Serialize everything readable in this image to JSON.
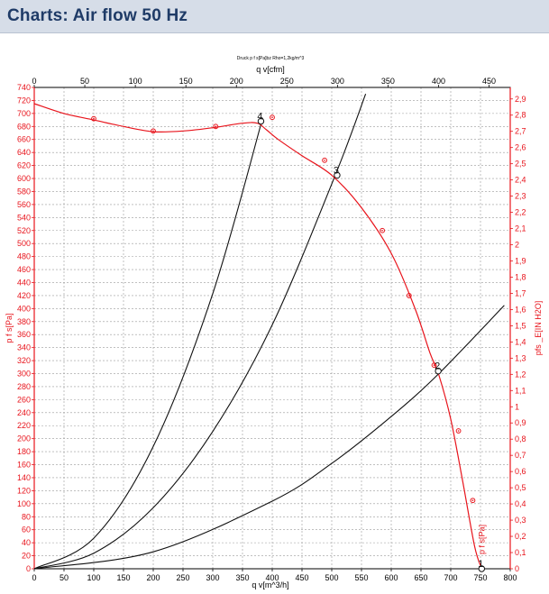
{
  "header": {
    "title": "Charts: Air flow 50 Hz"
  },
  "chart_data": {
    "type": "line",
    "title": "Druck p f s[Pa]bz Rho=1,2kg/m^3",
    "xlabel": "q v[m^3/h]",
    "xlabel_top": "q v[cfm]",
    "ylabel": "p f s[Pa]",
    "ylabel_right": "pfs _E[IN H2O]",
    "xlim": [
      0,
      800
    ],
    "ylim": [
      0,
      740
    ],
    "x_ticks": [
      0,
      50,
      100,
      150,
      200,
      250,
      300,
      350,
      400,
      450,
      500,
      550,
      600,
      650,
      700,
      750,
      800
    ],
    "y_ticks": [
      0,
      20,
      40,
      60,
      80,
      100,
      120,
      140,
      160,
      180,
      200,
      220,
      240,
      260,
      280,
      300,
      320,
      340,
      360,
      380,
      400,
      420,
      440,
      460,
      480,
      500,
      520,
      540,
      560,
      580,
      600,
      620,
      640,
      660,
      680,
      700,
      720,
      740
    ],
    "x_top_lim": [
      0,
      470.9
    ],
    "x_top_ticks": [
      0,
      50,
      100,
      150,
      200,
      250,
      300,
      350,
      400,
      450
    ],
    "y_right_lim": [
      0,
      2.971
    ],
    "y_right_ticks": [
      "0",
      "0,1",
      "0,2",
      "0,3",
      "0,4",
      "0,5",
      "0,6",
      "0,7",
      "0,8",
      "0,9",
      "1",
      "1,1",
      "1,2",
      "1,3",
      "1,4",
      "1,5",
      "1,6",
      "1,7",
      "1,8",
      "1,9",
      "2",
      "2,1",
      "2,2",
      "2,3",
      "2,4",
      "2,5",
      "2,6",
      "2,7",
      "2,8",
      "2,9"
    ],
    "grid": true,
    "fan_curve": {
      "name": "p f s[Pa]",
      "color": "#e8141c",
      "x": [
        0,
        50,
        100,
        150,
        200,
        250,
        300,
        350,
        375,
        390,
        410,
        450,
        500,
        550,
        600,
        640,
        665,
        680,
        700,
        720,
        740,
        752
      ],
      "y": [
        715,
        700,
        690,
        680,
        672,
        673,
        678,
        685,
        685,
        675,
        660,
        635,
        605,
        555,
        485,
        400,
        332,
        298,
        230,
        135,
        35,
        0
      ]
    },
    "measured_points": {
      "color": "#e8141c",
      "x": [
        100,
        200,
        305,
        400,
        488,
        585,
        630,
        672,
        713,
        737
      ],
      "y": [
        692,
        673,
        680,
        694,
        628,
        520,
        420,
        313,
        212,
        105
      ]
    },
    "system_curves": [
      {
        "name": "4",
        "color": "#111111",
        "x": [
          0,
          100,
          200,
          300,
          384
        ],
        "y": [
          0,
          47,
          188,
          423,
          693
        ],
        "label_x": 381,
        "label_y": 698
      },
      {
        "name": "3",
        "color": "#111111",
        "x": [
          0,
          100,
          200,
          300,
          400,
          505,
          557
        ],
        "y": [
          0,
          24,
          94,
          211,
          375,
          603,
          730
        ],
        "label_x": 509,
        "label_y": 615
      },
      {
        "name": "2",
        "color": "#111111",
        "x": [
          0,
          200,
          400,
          500,
          600,
          680,
          790
        ],
        "y": [
          0,
          26,
          104,
          162,
          234,
          300,
          405
        ],
        "label_x": 682,
        "label_y": 312
      }
    ],
    "operating_points": [
      {
        "name": "4",
        "x": 381,
        "y": 688
      },
      {
        "name": "3",
        "x": 509,
        "y": 605
      },
      {
        "name": "2",
        "x": 679,
        "y": 304
      },
      {
        "name": "1",
        "x": 752,
        "y": 0
      }
    ]
  }
}
